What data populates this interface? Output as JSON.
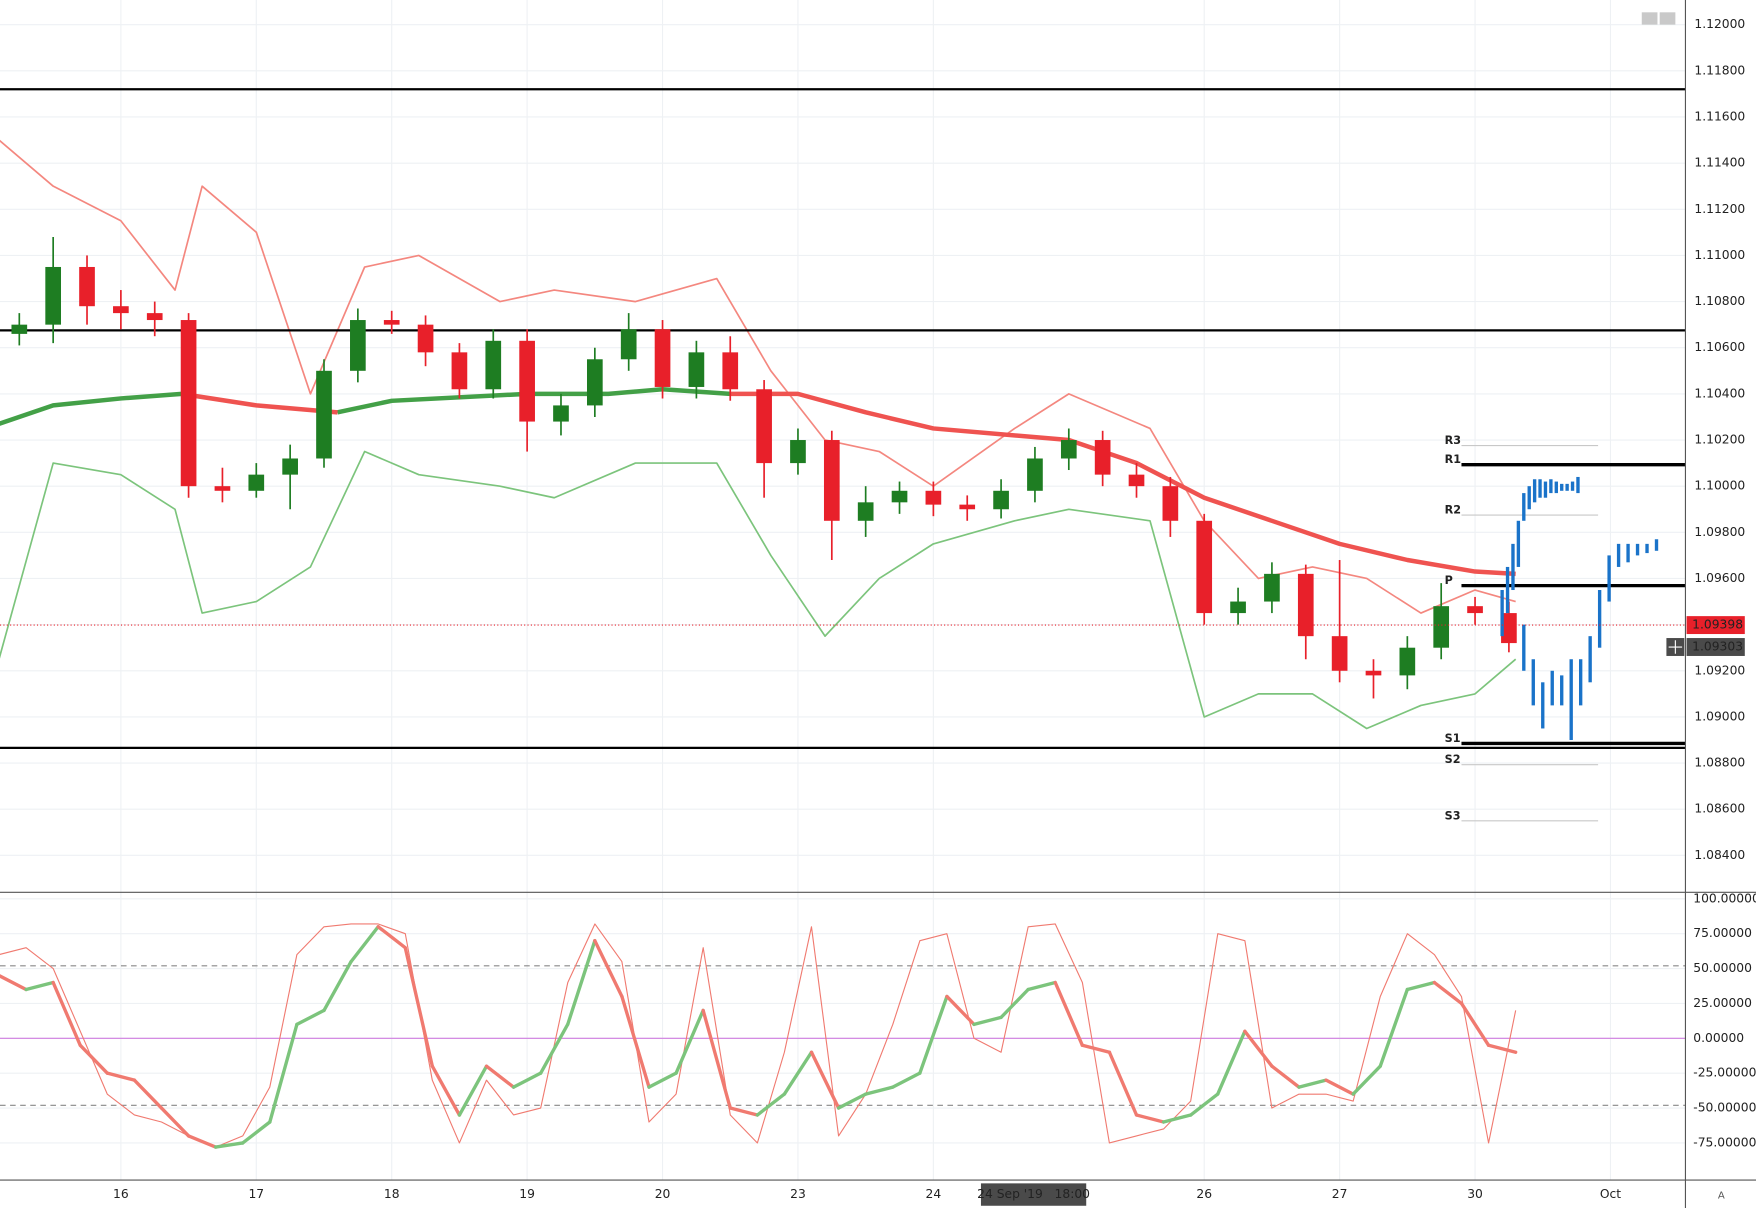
{
  "chart_data": [
    {
      "type": "candlestick",
      "xlim": [
        -0.8926,
        11.5537
      ],
      "ylim": [
        1.0824,
        1.12107
      ],
      "yticks": [
        {
          "value": 1.12,
          "label": "1.12000"
        },
        {
          "value": 1.118,
          "label": "1.11800"
        },
        {
          "value": 1.116,
          "label": "1.11600"
        },
        {
          "value": 1.114,
          "label": "1.11400"
        },
        {
          "value": 1.112,
          "label": "1.11200"
        },
        {
          "value": 1.11,
          "label": "1.11000"
        },
        {
          "value": 1.108,
          "label": "1.10800"
        },
        {
          "value": 1.106,
          "label": "1.10600"
        },
        {
          "value": 1.104,
          "label": "1.10400"
        },
        {
          "value": 1.102,
          "label": "1.10200"
        },
        {
          "value": 1.1,
          "label": "1.10000"
        },
        {
          "value": 1.098,
          "label": "1.09800"
        },
        {
          "value": 1.096,
          "label": "1.09600"
        },
        {
          "value": 1.094,
          "label": "1.09400"
        },
        {
          "value": 1.092,
          "label": "1.09200"
        },
        {
          "value": 1.09,
          "label": "1.09000"
        },
        {
          "value": 1.088,
          "label": "1.08800"
        },
        {
          "value": 1.086,
          "label": "1.08600"
        },
        {
          "value": 1.084,
          "label": "1.08400"
        }
      ],
      "grid": true,
      "up_color": "#1e7d22",
      "down_color": "#e8202a",
      "x": [
        -0.75,
        -0.5,
        -0.25,
        0,
        0.25,
        0.5,
        0.75,
        1,
        1.25,
        1.5,
        1.75,
        2,
        2.25,
        2.5,
        2.75,
        3,
        3.25,
        3.5,
        3.75,
        4,
        4.25,
        4.5,
        4.75,
        5,
        5.25,
        5.5,
        5.75,
        6,
        6.25,
        6.5,
        6.75,
        7,
        7.25,
        7.5,
        7.75,
        8,
        8.25,
        8.5,
        8.75,
        9,
        9.25,
        9.5,
        9.75,
        10,
        10.25
      ],
      "ohlc": [
        [
          1.1066,
          1.1075,
          1.1061,
          1.107
        ],
        [
          1.107,
          1.1108,
          1.1062,
          1.1095
        ],
        [
          1.1095,
          1.11,
          1.107,
          1.1078
        ],
        [
          1.1078,
          1.1085,
          1.1068,
          1.1075
        ],
        [
          1.1075,
          1.108,
          1.1065,
          1.1072
        ],
        [
          1.1072,
          1.1075,
          1.0995,
          1.1
        ],
        [
          1.1,
          1.1008,
          1.0993,
          1.0998
        ],
        [
          1.0998,
          1.101,
          1.0995,
          1.1005
        ],
        [
          1.1005,
          1.1018,
          1.099,
          1.1012
        ],
        [
          1.1012,
          1.1055,
          1.1008,
          1.105
        ],
        [
          1.105,
          1.1077,
          1.1045,
          1.1072
        ],
        [
          1.1072,
          1.1076,
          1.1066,
          1.107
        ],
        [
          1.107,
          1.1074,
          1.1052,
          1.1058
        ],
        [
          1.1058,
          1.1062,
          1.1038,
          1.1042
        ],
        [
          1.1042,
          1.1068,
          1.1038,
          1.1063
        ],
        [
          1.1063,
          1.1068,
          1.1015,
          1.1028
        ],
        [
          1.1028,
          1.104,
          1.1022,
          1.1035
        ],
        [
          1.1035,
          1.106,
          1.103,
          1.1055
        ],
        [
          1.1055,
          1.1075,
          1.105,
          1.1068
        ],
        [
          1.1068,
          1.1072,
          1.1038,
          1.1043
        ],
        [
          1.1043,
          1.1063,
          1.1038,
          1.1058
        ],
        [
          1.1058,
          1.1065,
          1.1037,
          1.1042
        ],
        [
          1.1042,
          1.1046,
          1.0995,
          1.101
        ],
        [
          1.101,
          1.1025,
          1.1005,
          1.102
        ],
        [
          1.102,
          1.1024,
          1.0968,
          1.0985
        ],
        [
          1.0985,
          1.1,
          1.0978,
          1.0993
        ],
        [
          1.0993,
          1.1002,
          1.0988,
          1.0998
        ],
        [
          1.0998,
          1.1002,
          1.0987,
          1.0992
        ],
        [
          1.0992,
          1.0996,
          1.0985,
          1.099
        ],
        [
          1.099,
          1.1003,
          1.0986,
          1.0998
        ],
        [
          1.0998,
          1.1017,
          1.0993,
          1.1012
        ],
        [
          1.1012,
          1.1025,
          1.1007,
          1.102
        ],
        [
          1.102,
          1.1024,
          1.1,
          1.1005
        ],
        [
          1.1005,
          1.101,
          1.0995,
          1.1
        ],
        [
          1.1,
          1.1004,
          1.0978,
          1.0985
        ],
        [
          1.0985,
          1.0988,
          1.094,
          1.0945
        ],
        [
          1.0945,
          1.0956,
          1.094,
          1.095
        ],
        [
          1.095,
          1.0967,
          1.0945,
          1.0962
        ],
        [
          1.0962,
          1.0966,
          1.0925,
          1.0935
        ],
        [
          1.0935,
          1.0968,
          1.0915,
          1.092
        ],
        [
          1.092,
          1.0925,
          1.0908,
          1.0918
        ],
        [
          1.0918,
          1.0935,
          1.0912,
          1.093
        ],
        [
          1.093,
          1.0958,
          1.0925,
          1.0948
        ],
        [
          1.0948,
          1.0952,
          1.094,
          1.0945
        ],
        [
          1.0945,
          1.095,
          1.0928,
          1.0932
        ]
      ],
      "lines": [
        {
          "color": "#f4877f",
          "width": 1.5,
          "x": [
            -0.9,
            -0.5,
            0,
            0.4,
            0.6,
            1,
            1.4,
            1.8,
            2.2,
            2.8,
            3.2,
            3.8,
            4.4,
            4.8,
            5.2,
            5.6,
            6,
            6.6,
            7,
            7.6,
            8,
            8.4,
            8.8,
            9.2,
            9.6,
            10,
            10.3
          ],
          "values": [
            1.115,
            1.113,
            1.1115,
            1.1085,
            1.113,
            1.111,
            1.104,
            1.1095,
            1.11,
            1.108,
            1.1085,
            1.108,
            1.109,
            1.105,
            1.102,
            1.1015,
            1.1,
            1.1025,
            1.104,
            1.1025,
            1.0985,
            1.096,
            1.0965,
            1.096,
            1.0945,
            1.0955,
            1.095
          ]
        },
        {
          "color": "#7cc47c",
          "width": 1.5,
          "x": [
            -0.9,
            -0.5,
            0,
            0.4,
            0.6,
            1,
            1.4,
            1.8,
            2.2,
            2.8,
            3.2,
            3.8,
            4.4,
            4.8,
            5.2,
            5.6,
            6,
            6.6,
            7,
            7.6,
            8,
            8.4,
            8.8,
            9.2,
            9.6,
            10,
            10.3
          ],
          "values": [
            1.0925,
            1.101,
            1.1005,
            1.099,
            1.0945,
            1.095,
            1.0965,
            1.1015,
            1.1005,
            1.1,
            1.0995,
            1.101,
            1.101,
            1.097,
            1.0935,
            1.096,
            1.0975,
            1.0985,
            1.099,
            1.0985,
            1.09,
            1.091,
            1.091,
            1.0895,
            1.0905,
            1.091,
            1.0925
          ]
        },
        {
          "color": "#43a047",
          "width": 4,
          "x": [
            -0.9,
            -0.5,
            0,
            0.45,
            1,
            1.6,
            2,
            3,
            3.6,
            4,
            4.5,
            5,
            5.5,
            6,
            7,
            7.5,
            8,
            8.5,
            9,
            9.5,
            10,
            10.3
          ],
          "values": [
            1.1027,
            1.1035,
            1.1038,
            1.104,
            null,
            1.1032,
            1.1037,
            1.104,
            1.104,
            1.1042,
            1.104,
            null,
            null,
            null,
            null,
            null,
            null,
            null,
            null,
            null,
            null,
            null
          ]
        },
        {
          "color": "#ef5350",
          "width": 4,
          "x": [
            -0.9,
            -0.5,
            0,
            0.45,
            1,
            1.6,
            2,
            3,
            3.6,
            4,
            4.5,
            5,
            5.5,
            6,
            7,
            7.5,
            8,
            8.5,
            9,
            9.5,
            10,
            10.3
          ],
          "values": [
            null,
            null,
            null,
            1.104,
            1.1035,
            1.1032,
            null,
            null,
            null,
            null,
            1.104,
            1.104,
            1.1032,
            1.1025,
            1.102,
            1.101,
            1.0995,
            1.0985,
            1.0975,
            1.0968,
            1.0963,
            1.0962
          ]
        }
      ],
      "levels": [
        1.1172,
        1.10675,
        1.08866
      ],
      "pivots": [
        {
          "label": "R3",
          "value": 1.10176,
          "color": "#c8c8c8"
        },
        {
          "label": "R1",
          "value": 1.10093,
          "color": "#000000"
        },
        {
          "label": "R2",
          "value": 1.09875,
          "color": "#c8c8c8"
        },
        {
          "label": "P",
          "value": 1.09569,
          "color": "#000000"
        },
        {
          "label": "S1",
          "value": 1.08885,
          "color": "#000000"
        },
        {
          "label": "S2",
          "value": 1.08793,
          "color": "#c8c8c8"
        },
        {
          "label": "S3",
          "value": 1.0855,
          "color": "#c8c8c8"
        }
      ],
      "projection_color": "#1a73c9",
      "projection": [
        {
          "x": [
            10.2,
            10.24,
            10.28,
            10.32,
            10.36,
            10.4,
            10.44,
            10.48,
            10.52,
            10.56,
            10.6,
            10.64,
            10.68,
            10.72,
            10.76
          ],
          "ranges": [
            [
              1.0935,
              1.0955
            ],
            [
              1.0945,
              1.0965
            ],
            [
              1.0955,
              1.0975
            ],
            [
              1.0965,
              1.0985
            ],
            [
              1.0985,
              1.0997
            ],
            [
              1.099,
              1.1
            ],
            [
              1.0993,
              1.1003
            ],
            [
              1.0995,
              1.1003
            ],
            [
              1.0995,
              1.1002
            ],
            [
              1.0997,
              1.1003
            ],
            [
              1.0997,
              1.1002
            ],
            [
              1.0998,
              1.1001
            ],
            [
              1.0998,
              1.1001
            ],
            [
              1.0998,
              1.1002
            ],
            [
              1.0997,
              1.1004
            ]
          ]
        },
        {
          "x": [
            10.36,
            10.43,
            10.5,
            10.57,
            10.64,
            10.71,
            10.78,
            10.85,
            10.92,
            10.99,
            11.06,
            11.13,
            11.2,
            11.27,
            11.34
          ],
          "ranges": [
            [
              1.092,
              1.094
            ],
            [
              1.0905,
              1.0925
            ],
            [
              1.0895,
              1.0915
            ],
            [
              1.0905,
              1.092
            ],
            [
              1.0905,
              1.0918
            ],
            [
              1.089,
              1.0925
            ],
            [
              1.0905,
              1.0925
            ],
            [
              1.0915,
              1.0935
            ],
            [
              1.093,
              1.0955
            ],
            [
              1.095,
              1.097
            ],
            [
              1.0965,
              1.0975
            ],
            [
              1.0967,
              1.0975
            ],
            [
              1.097,
              1.0975
            ],
            [
              1.0971,
              1.0975
            ],
            [
              1.0972,
              1.0977
            ]
          ]
        }
      ],
      "last_price": {
        "value": 1.09398,
        "label": "1.09398"
      },
      "crosshair_price": {
        "value": 1.09303,
        "label": "1.09303"
      }
    },
    {
      "type": "line",
      "xlim": [
        -0.8926,
        11.5537
      ],
      "ylim": [
        -101.6,
        104.7
      ],
      "xticks": [
        {
          "value": 0,
          "label": "16"
        },
        {
          "value": 1,
          "label": "17"
        },
        {
          "value": 2,
          "label": "18"
        },
        {
          "value": 3,
          "label": "19"
        },
        {
          "value": 4,
          "label": "20"
        },
        {
          "value": 5,
          "label": "23"
        },
        {
          "value": 6,
          "label": "24"
        },
        {
          "value": 8,
          "label": "26"
        },
        {
          "value": 9,
          "label": "27"
        },
        {
          "value": 10,
          "label": "30"
        },
        {
          "value": 11,
          "label": "Oct"
        }
      ],
      "yticks": [
        {
          "value": 100,
          "label": "100.00000"
        },
        {
          "value": 75,
          "label": "75.00000"
        },
        {
          "value": 50,
          "label": "50.00000"
        },
        {
          "value": 25,
          "label": "25.00000"
        },
        {
          "value": 0,
          "label": "0.00000"
        },
        {
          "value": -25,
          "label": "-25.00000"
        },
        {
          "value": -50,
          "label": "-50.00000"
        },
        {
          "value": -75,
          "label": "-75.00000"
        }
      ],
      "levels": [
        {
          "value": 52,
          "color": "#888888",
          "dash": true
        },
        {
          "value": 0,
          "color": "#d07de0",
          "dash": false
        },
        {
          "value": -48,
          "color": "#888888",
          "dash": true
        }
      ],
      "up_color": "#7cc47c",
      "down_color": "#f07a70",
      "signal_color": "#f07a70",
      "x": [
        -0.9,
        -0.7,
        -0.5,
        -0.3,
        -0.1,
        0.1,
        0.3,
        0.5,
        0.7,
        0.9,
        1.1,
        1.3,
        1.5,
        1.7,
        1.9,
        2.1,
        2.3,
        2.5,
        2.7,
        2.9,
        3.1,
        3.3,
        3.5,
        3.7,
        3.9,
        4.1,
        4.3,
        4.5,
        4.7,
        4.9,
        5.1,
        5.3,
        5.5,
        5.7,
        5.9,
        6.1,
        6.3,
        6.5,
        6.7,
        6.9,
        7.1,
        7.3,
        7.5,
        7.7,
        7.9,
        8.1,
        8.3,
        8.5,
        8.7,
        8.9,
        9.1,
        9.3,
        9.5,
        9.7,
        9.9,
        10.1,
        10.3
      ],
      "values": [
        45,
        35,
        40,
        -5,
        -25,
        -30,
        -50,
        -70,
        -78,
        -75,
        -60,
        10,
        20,
        55,
        80,
        65,
        -20,
        -55,
        -20,
        -35,
        -25,
        10,
        70,
        30,
        -35,
        -25,
        20,
        -50,
        -55,
        -40,
        -10,
        -50,
        -40,
        -35,
        -25,
        30,
        10,
        15,
        35,
        40,
        -5,
        -10,
        -55,
        -60,
        -55,
        -40,
        5,
        -20,
        -35,
        -30,
        -40,
        -20,
        35,
        40,
        25,
        -5,
        -10
      ],
      "signal": [
        60,
        65,
        50,
        5,
        -40,
        -55,
        -60,
        -70,
        -78,
        -70,
        -35,
        60,
        80,
        82,
        82,
        75,
        -30,
        -75,
        -30,
        -55,
        -50,
        40,
        82,
        55,
        -60,
        -40,
        65,
        -55,
        -75,
        -10,
        80,
        -70,
        -40,
        10,
        70,
        75,
        0,
        -10,
        80,
        82,
        40,
        -75,
        -70,
        -65,
        -45,
        75,
        70,
        -50,
        -40,
        -40,
        -45,
        30,
        75,
        60,
        30,
        -75,
        20
      ],
      "crosshair": {
        "x": 6.74,
        "label": "24 Sep '19   18:00"
      }
    }
  ]
}
